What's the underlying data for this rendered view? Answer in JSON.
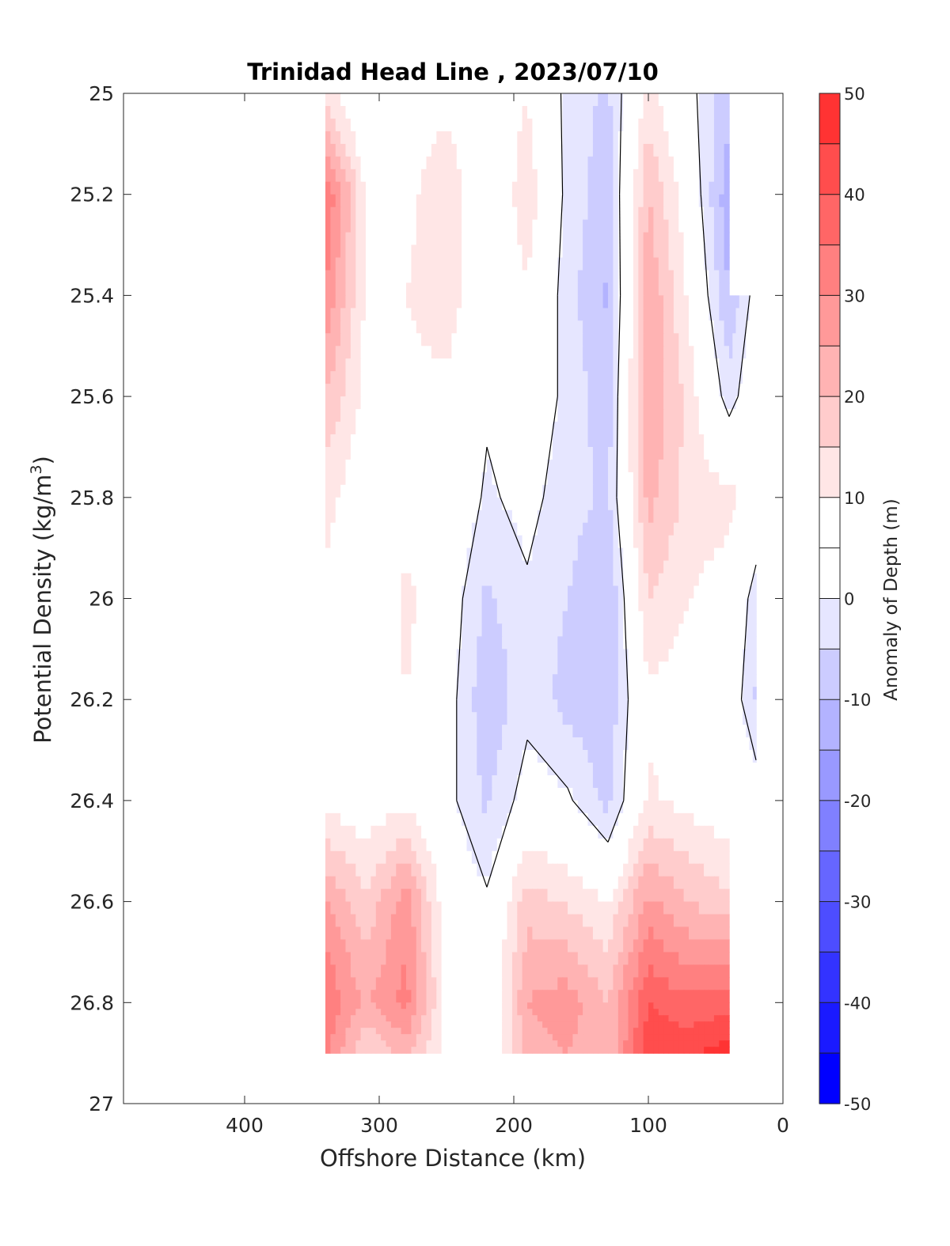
{
  "chart_data": {
    "type": "heatmap",
    "title": "Trinidad Head Line , 2023/07/10",
    "xlabel": "Offshore Distance (km)",
    "ylabel_main": "Potential Density (kg/m",
    "ylabel_sup": "3",
    "ylabel_close": ")",
    "colorbar_label": "Anomaly of Depth (m)",
    "xlim": [
      490,
      0
    ],
    "ylim": [
      27,
      25
    ],
    "x_reversed": true,
    "y_reversed": true,
    "xticks": [
      400,
      300,
      200,
      100,
      0
    ],
    "xtick_labels": [
      "400",
      "300",
      "200",
      "100",
      "0"
    ],
    "yticks": [
      25,
      25.2,
      25.4,
      25.6,
      25.8,
      26,
      26.2,
      26.4,
      26.6,
      26.8,
      27
    ],
    "ytick_labels": [
      "25",
      "25.2",
      "25.4",
      "25.6",
      "25.8",
      "26",
      "26.2",
      "26.4",
      "26.6",
      "26.8",
      "27"
    ],
    "grid": false,
    "colorbar": {
      "range": [
        -50,
        50
      ],
      "step": 5,
      "tick_values": [
        50,
        40,
        30,
        20,
        10,
        0,
        -10,
        -20,
        -30,
        -40,
        -50
      ],
      "tick_labels": [
        "50",
        "40",
        "30",
        "20",
        "10",
        "0",
        "-10",
        "-20",
        "-30",
        "-40",
        "-50"
      ],
      "colors": [
        "#0000ff",
        "#1a1aff",
        "#3333ff",
        "#4d4dff",
        "#6666ff",
        "#8080ff",
        "#9999ff",
        "#b3b3ff",
        "#ccccff",
        "#e6e6ff",
        "#ffffff",
        "#ffffff",
        "#ffe6e6",
        "#ffcccc",
        "#ffb3b3",
        "#ff9999",
        "#ff8080",
        "#ff6666",
        "#ff4d4d",
        "#ff3333",
        "#ff1a1a",
        "#ff0000"
      ]
    },
    "x": [
      340,
      310,
      280,
      250,
      220,
      190,
      160,
      130,
      100,
      70,
      40,
      20
    ],
    "y": [
      25,
      25.2,
      25.4,
      25.6,
      25.8,
      26.0,
      26.2,
      26.4,
      26.6,
      26.8,
      26.9
    ],
    "z": [
      [
        12,
        2,
        6,
        8,
        2,
        10,
        -2,
        -6,
        12,
        2,
        -8,
        null
      ],
      [
        35,
        10,
        8,
        15,
        3,
        14,
        -2,
        -8,
        20,
        6,
        -14,
        null
      ],
      [
        30,
        9,
        10,
        14,
        3,
        9,
        -3,
        -11,
        25,
        9,
        -10,
        3
      ],
      [
        20,
        8,
        8,
        8,
        1,
        6,
        -2,
        -8,
        25,
        13,
        -3,
        6
      ],
      [
        12,
        5,
        6,
        6,
        -1,
        2,
        -3,
        -6,
        22,
        13,
        12,
        6
      ],
      [
        9,
        1,
        12,
        4,
        -6,
        -1,
        -5,
        -10,
        15,
        10,
        7,
        -3
      ],
      [
        6,
        2,
        10,
        3,
        -9,
        -2,
        -7,
        -9,
        9,
        7,
        5,
        -6
      ],
      [
        8,
        6,
        8,
        2,
        -6,
        3,
        1,
        -7,
        11,
        8,
        6,
        4
      ],
      [
        26,
        16,
        28,
        6,
        1,
        18,
        14,
        10,
        26,
        20,
        16,
        null
      ],
      [
        35,
        24,
        32,
        8,
        2,
        25,
        28,
        20,
        40,
        36,
        38,
        null
      ],
      [
        32,
        14,
        22,
        8,
        2,
        22,
        25,
        20,
        44,
        44,
        48,
        null
      ]
    ]
  }
}
